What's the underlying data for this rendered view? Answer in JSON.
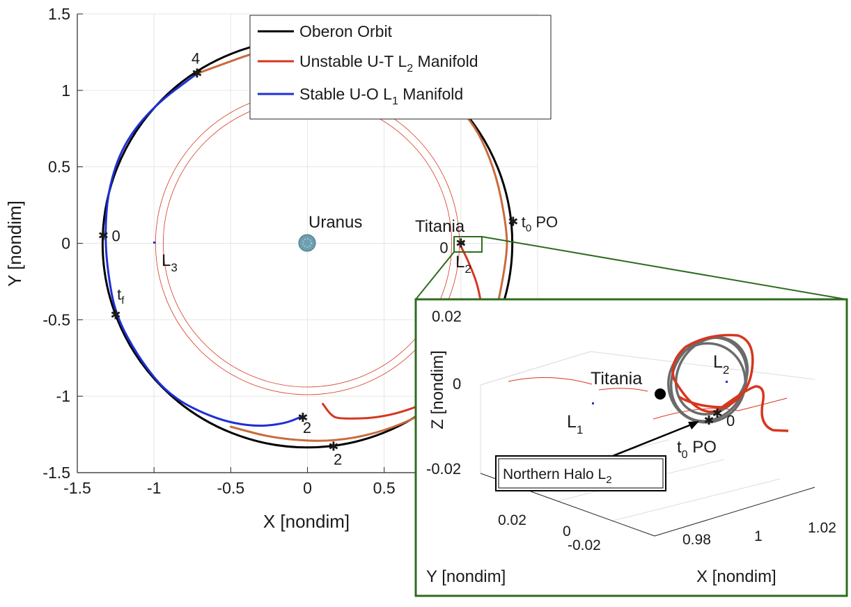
{
  "chart_data": [
    {
      "type": "line",
      "title": "",
      "xlabel": "X [nondim]",
      "ylabel": "Y [nondim]",
      "xlim": [
        -1.5,
        1.5
      ],
      "ylim": [
        -1.5,
        1.5
      ],
      "x_ticks": [
        -1.5,
        -1,
        -0.5,
        0,
        0.5
      ],
      "x_tick_labels": [
        "-1.5",
        "-1",
        "-0.5",
        "0",
        "0.5"
      ],
      "y_ticks": [
        1.5,
        1,
        0.5,
        0,
        -0.5,
        -1,
        -1.5
      ],
      "y_tick_labels": [
        "1.5",
        "1",
        "0.5",
        "0",
        "-0.5",
        "-1",
        "-1.5"
      ],
      "grid": true,
      "legend_position": "top-center",
      "legend": [
        {
          "label": "Oberon Orbit",
          "color": "#000000"
        },
        {
          "label": "Unstable U-T L",
          "sub": "2",
          "suffix": " Manifold",
          "color": "#d6361f"
        },
        {
          "label": "Stable U-O L",
          "sub": "1",
          "suffix": " Manifold",
          "color": "#1f2fd6"
        }
      ],
      "series": [
        {
          "name": "Oberon Orbit",
          "color": "#000000",
          "shape": "circle",
          "center": [
            0,
            0
          ],
          "radius": 1.335
        },
        {
          "name": "Unstable U-T L2 Manifold",
          "color": "#d6361f",
          "points": [
            [
              0.1,
              -1.05
            ],
            [
              0.15,
              -1.12
            ],
            [
              0.2,
              -1.15
            ],
            [
              0.5,
              -1.14
            ],
            [
              0.8,
              -1.04
            ],
            [
              1.0,
              -0.9
            ],
            [
              1.1,
              -0.75
            ],
            [
              1.15,
              -0.55
            ],
            [
              1.12,
              -0.3
            ],
            [
              1.05,
              -0.12
            ],
            [
              1.0,
              -0.02
            ]
          ]
        },
        {
          "name": "Unstable U-T L2 Manifold (outer)",
          "color": "#c86b3c",
          "points": [
            [
              -0.5,
              -1.2
            ],
            [
              -0.2,
              -1.28
            ],
            [
              0.2,
              -1.3
            ],
            [
              0.6,
              -1.2
            ],
            [
              0.95,
              -1.0
            ],
            [
              1.2,
              -0.6
            ],
            [
              1.3,
              -0.1
            ],
            [
              1.3,
              0.1
            ],
            [
              1.22,
              0.5
            ],
            [
              1.05,
              0.85
            ],
            [
              0.7,
              1.12
            ],
            [
              0.2,
              1.3
            ],
            [
              -0.2,
              1.3
            ],
            [
              -0.72,
              1.11
            ]
          ]
        },
        {
          "name": "Stable U-O L1 Manifold",
          "color": "#1f2fd6",
          "points": [
            [
              -0.03,
              -1.13
            ],
            [
              -0.15,
              -1.18
            ],
            [
              -0.35,
              -1.2
            ],
            [
              -0.6,
              -1.15
            ],
            [
              -0.9,
              -1.0
            ],
            [
              -1.1,
              -0.75
            ],
            [
              -1.25,
              -0.47
            ],
            [
              -1.3,
              -0.2
            ],
            [
              -1.32,
              0.05
            ],
            [
              -1.3,
              0.35
            ],
            [
              -1.2,
              0.65
            ],
            [
              -1.0,
              0.9
            ],
            [
              -0.72,
              1.11
            ]
          ]
        }
      ],
      "thin_rings": [
        {
          "center": [
            0,
            0
          ],
          "radius": 0.99,
          "color": "#d6361f"
        },
        {
          "center": [
            0,
            0
          ],
          "radius": 0.94,
          "color": "#d6361f"
        }
      ],
      "point_labels": [
        {
          "text": "4",
          "x": -0.72,
          "y": 1.11,
          "dx": -8,
          "dy": -14
        },
        {
          "text": "0",
          "x": -1.33,
          "y": 0.05,
          "dx": 12,
          "dy": 8
        },
        {
          "text": "t",
          "sub": "f",
          "x": -1.25,
          "y": -0.47,
          "dx": 2,
          "dy": -22
        },
        {
          "text": "2",
          "x": -0.03,
          "y": -1.14,
          "dx": 0,
          "dy": 22
        },
        {
          "text": "2",
          "x": 0.17,
          "y": -1.33,
          "dx": 0,
          "dy": 26
        },
        {
          "text": "t",
          "sub": "0",
          "suffix": " PO",
          "x": 1.34,
          "y": 0.14,
          "dx": 12,
          "dy": 8
        },
        {
          "text": "0",
          "x": 0.98,
          "y": 0.0,
          "dx": -26,
          "dy": 14
        }
      ],
      "markers_at": [
        [
          -0.72,
          1.11
        ],
        [
          -1.33,
          0.05
        ],
        [
          -1.25,
          -0.47
        ],
        [
          -0.03,
          -1.14
        ],
        [
          0.17,
          -1.33
        ],
        [
          1.34,
          0.14
        ],
        [
          1.0,
          0.0
        ]
      ],
      "bodies": [
        {
          "label": "Uranus",
          "x": 0,
          "y": 0,
          "color": "#5b8fa0"
        },
        {
          "label": "Titania",
          "x": 1.0,
          "y": 0.0
        }
      ],
      "lagrange_points": [
        {
          "label": "L",
          "sub": "3",
          "x": -1.0,
          "y": 0.0
        },
        {
          "label": "L",
          "sub": "2",
          "x": 1.04,
          "y": -0.05
        }
      ]
    },
    {
      "type": "line",
      "title": "",
      "xlabel": "X [nondim]",
      "ylabel": "Y [nondim]",
      "zlabel": "Z [nondim]",
      "z_ticks": [
        0.02,
        0,
        -0.02
      ],
      "z_tick_labels": [
        "0.02",
        "0",
        "-0.02"
      ],
      "y_tick_labels": [
        "0.02",
        "0",
        "-0.02"
      ],
      "x_tick_labels": [
        "0.98",
        "1",
        "1.02"
      ],
      "annotation": {
        "text": "Northern Halo L",
        "sub": "2"
      },
      "labels": [
        {
          "text": "Titania"
        },
        {
          "text": "L",
          "sub": "1"
        },
        {
          "text": "L",
          "sub": "2"
        },
        {
          "text": "0"
        },
        {
          "text": "t",
          "sub": "0",
          "suffix": " PO"
        }
      ],
      "colors": {
        "frame": "#2e6b1f",
        "halo": "#6b6b6b",
        "manifold": "#d6361f"
      }
    }
  ]
}
